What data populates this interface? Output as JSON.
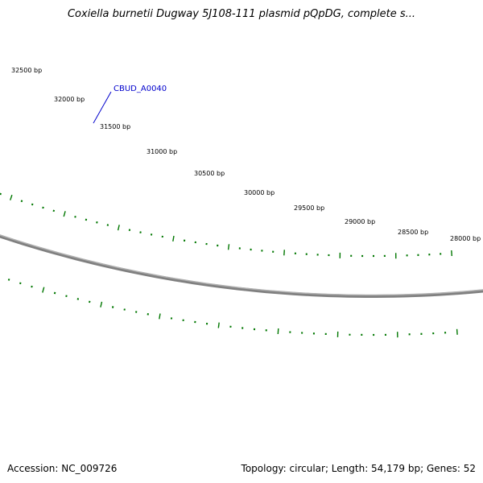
{
  "title": "Coxiella burnetii Dugway 5J108-111 plasmid pQpDG, complete s...",
  "accession": "Accession: NC_009726",
  "info": "Topology: circular; Length: 54,179 bp; Genes: 52",
  "colors": {
    "backbone": "#808080",
    "gene": "#0000ee",
    "ticks": "#007700",
    "gene_label": "#0000cc"
  },
  "gene": {
    "label": "CBUD_A0040"
  },
  "ticks": [
    "32500 bp",
    "32000 bp",
    "31500 bp",
    "31000 bp",
    "30500 bp",
    "30000 bp",
    "29500 bp",
    "29000 bp",
    "28500 bp",
    "28000 bp"
  ]
}
